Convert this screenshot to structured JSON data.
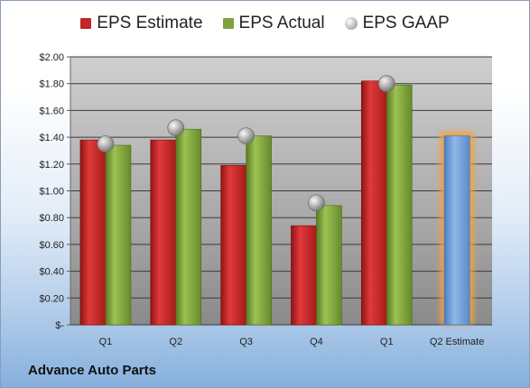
{
  "chart_data": {
    "type": "bar",
    "categories": [
      "Q1",
      "Q2",
      "Q3",
      "Q4",
      "Q1",
      "Q2 Estimate"
    ],
    "series": [
      {
        "name": "EPS Estimate",
        "color": "#c42424",
        "values": [
          1.38,
          1.38,
          1.19,
          0.74,
          1.82,
          null
        ]
      },
      {
        "name": "EPS Actual",
        "color": "#7fa33c",
        "values": [
          1.34,
          1.46,
          1.41,
          0.89,
          1.79,
          null
        ]
      },
      {
        "name": "EPS GAAP",
        "color": "#b9b9b9",
        "marker": "circle",
        "values": [
          1.35,
          1.47,
          1.41,
          0.91,
          1.8,
          null
        ]
      }
    ],
    "estimate_bar": {
      "category": "Q2 Estimate",
      "value": 1.41,
      "color": "#6f9fd8",
      "glow": "#f2a13f"
    },
    "y_ticks": [
      "$2.00",
      "$1.80",
      "$1.60",
      "$1.40",
      "$1.20",
      "$1.00",
      "$0.80",
      "$0.60",
      "$0.40",
      "$0.20",
      "$-"
    ],
    "ylim": [
      0,
      2.0
    ],
    "grid": true,
    "legend": "top",
    "title": "",
    "xlabel": "",
    "ylabel": ""
  },
  "company": "Advance Auto Parts"
}
